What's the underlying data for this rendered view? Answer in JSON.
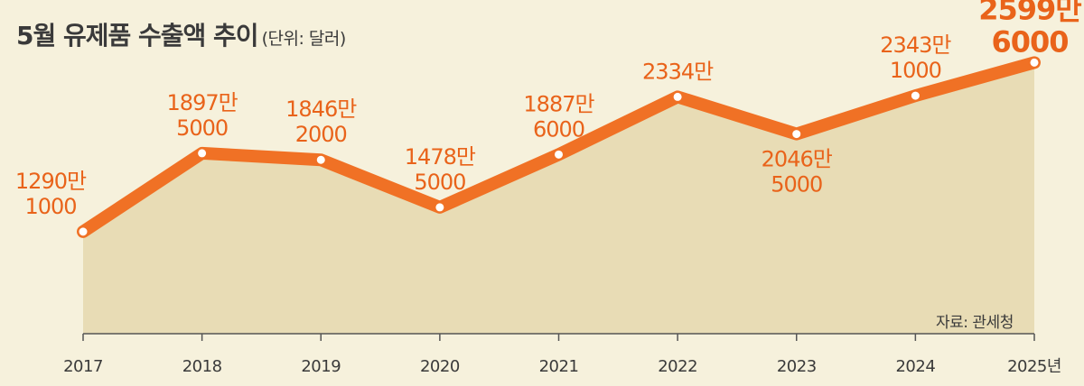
{
  "chart_data": {
    "type": "area",
    "title": "5월 유제품 수출액 추이",
    "subtitle": "(단위: 달러)",
    "source": "자료: 관세청",
    "categories": [
      "2017",
      "2018",
      "2019",
      "2020",
      "2021",
      "2022",
      "2023",
      "2024",
      "2025년"
    ],
    "values": [
      12901000,
      18975000,
      18462000,
      14785000,
      18876000,
      23340000,
      20465000,
      23431000,
      25996000
    ],
    "labels": [
      [
        "1290만",
        "1000"
      ],
      [
        "1897만",
        "5000"
      ],
      [
        "1846만",
        "2000"
      ],
      [
        "1478만",
        "5000"
      ],
      [
        "1887만",
        "6000"
      ],
      [
        "2334만"
      ],
      [
        "2046만",
        "5000"
      ],
      [
        "2343만",
        "1000"
      ],
      [
        "2599만",
        "6000"
      ]
    ],
    "label_positions": [
      "above",
      "above",
      "above",
      "above",
      "above",
      "above",
      "below",
      "above",
      "above"
    ],
    "ylim": [
      5000000,
      27000000
    ],
    "grid": false,
    "colors": {
      "background": "#f6f1dc",
      "area": "#e8dcb5",
      "line": "#f07125",
      "label": "#e9631a",
      "axis": "#555555",
      "text": "#3a3a3a"
    }
  }
}
